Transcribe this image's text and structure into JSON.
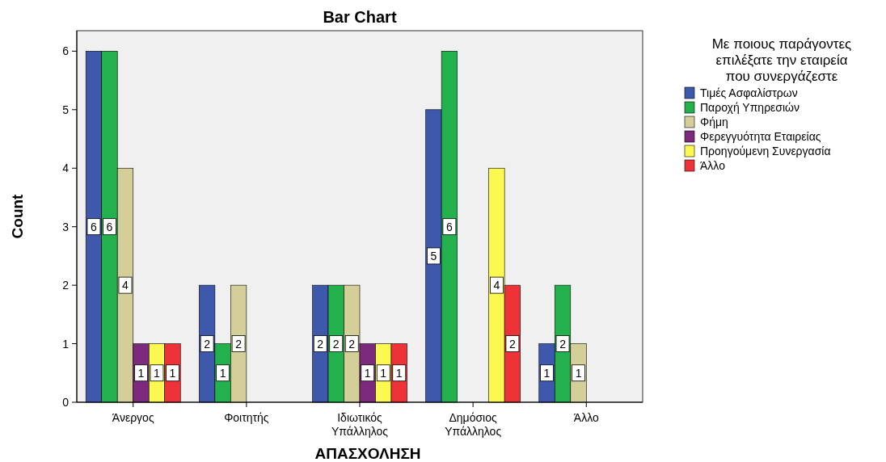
{
  "chart_data": {
    "type": "bar",
    "title": "Bar Chart",
    "xlabel": "ΑΠΑΣΧΟΛΗΣΗ",
    "ylabel": "Count",
    "legend_title": "Με ποιους παράγοντες επιλέξατε την εταιρεία που συνεργάζεστε",
    "categories": [
      "Άνεργος",
      "Φοιτητής",
      "Ιδιωτικός Υπάλληλος",
      "Δημόσιος Υπάλληλος",
      "Άλλο"
    ],
    "series": [
      {
        "name": "Τιμές Ασφαλίστρων",
        "color": "#3e58ac",
        "values": [
          6,
          2,
          2,
          5,
          1
        ]
      },
      {
        "name": "Παροχή Υπηρεσιών",
        "color": "#22b14c",
        "values": [
          6,
          1,
          2,
          6,
          2
        ]
      },
      {
        "name": "Φήμη",
        "color": "#d4ce98",
        "values": [
          4,
          2,
          2,
          null,
          1
        ]
      },
      {
        "name": "Φερεγγυότητα Εταιρείας",
        "color": "#7b2a7e",
        "values": [
          1,
          null,
          1,
          null,
          null
        ]
      },
      {
        "name": "Προηγούμενη Συνεργασία",
        "color": "#fbf94f",
        "values": [
          1,
          null,
          1,
          4,
          null
        ]
      },
      {
        "name": "Άλλο",
        "color": "#ee3338",
        "values": [
          1,
          null,
          1,
          2,
          null
        ]
      }
    ],
    "ylim": [
      0,
      6.35
    ],
    "yticks": [
      0,
      1,
      2,
      3,
      4,
      5,
      6
    ],
    "grid": false,
    "legend": "right",
    "data_labels": true
  }
}
